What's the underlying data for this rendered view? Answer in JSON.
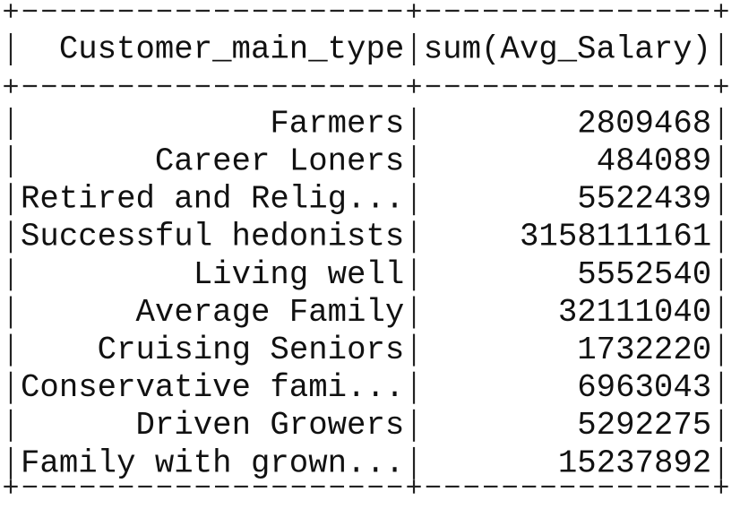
{
  "table": {
    "header": [
      "Customer_main_type",
      "sum(Avg_Salary)"
    ],
    "rows": [
      [
        "Farmers",
        2809468
      ],
      [
        "Career Loners",
        484089
      ],
      [
        "Retired and Relig...",
        5522439
      ],
      [
        "Successful hedonists",
        3158111161
      ],
      [
        "Living well",
        5552540
      ],
      [
        "Average Family",
        32111040
      ],
      [
        "Cruising Seniors",
        1732220
      ],
      [
        "Conservative fami...",
        6963043
      ],
      [
        "Driven Growers",
        5292275
      ],
      [
        "Family with grown...",
        15237892
      ]
    ]
  }
}
